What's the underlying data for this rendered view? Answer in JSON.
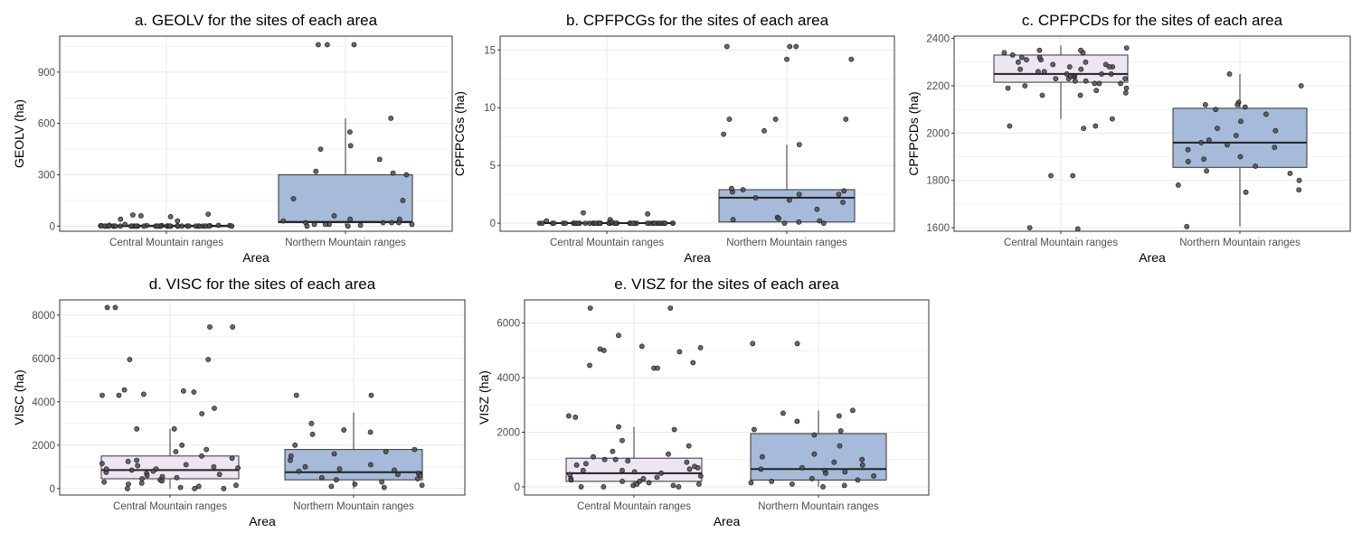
{
  "colors": {
    "central": "#ede5f1",
    "northern": "#a6bad9",
    "point": "#333333",
    "grid": "#ebebeb",
    "border": "#333333"
  },
  "chart_data": [
    {
      "type": "box",
      "title": "a. GEOLV for the sites of each area",
      "xlabel": "Area",
      "ylabel": "GEOLV (ha)",
      "categories": [
        "Central Mountain ranges",
        "Northern Mountain ranges"
      ],
      "ylim": [
        -30,
        1110
      ],
      "yticks": [
        0,
        300,
        600,
        900
      ],
      "boxes": [
        {
          "q1": 0,
          "median": 0,
          "q3": 5,
          "whisker_low": 0,
          "whisker_high": 10
        },
        {
          "q1": 20,
          "median": 25,
          "q3": 300,
          "whisker_low": 0,
          "whisker_high": 630
        }
      ],
      "points": [
        [
          0,
          5,
          0,
          2,
          0,
          1,
          0,
          3,
          0,
          0,
          2,
          0,
          1,
          0,
          0,
          4,
          0,
          0,
          3,
          0,
          0,
          5,
          0,
          1,
          0,
          0,
          2,
          0,
          0,
          60,
          0,
          0,
          30,
          0,
          0,
          70,
          0,
          40,
          0,
          0,
          10,
          0,
          0,
          55,
          0,
          0,
          2,
          0,
          0,
          65
        ],
        [
          1060,
          1060,
          1060,
          470,
          160,
          30,
          40,
          20,
          60,
          10,
          0,
          550,
          300,
          20,
          10,
          40,
          630,
          450,
          310,
          320,
          20,
          10,
          390,
          150,
          0,
          5,
          10,
          20
        ]
      ]
    },
    {
      "type": "box",
      "title": "b. CPFPCGs for the sites of each area",
      "xlabel": "Area",
      "ylabel": "CPFPCGs (ha)",
      "categories": [
        "Central Mountain ranges",
        "Northern Mountain ranges"
      ],
      "ylim": [
        -0.7,
        16.2
      ],
      "yticks": [
        0,
        5,
        10,
        15
      ],
      "boxes": [
        {
          "q1": 0,
          "median": 0,
          "q3": 0.05,
          "whisker_low": 0,
          "whisker_high": 0.1
        },
        {
          "q1": 0.1,
          "median": 2.2,
          "q3": 2.9,
          "whisker_low": 0,
          "whisker_high": 6.8
        }
      ],
      "points": [
        [
          0,
          0,
          0,
          0,
          0,
          0,
          0,
          0,
          0,
          0,
          0,
          0,
          0,
          0,
          0,
          0,
          0,
          0,
          0,
          0,
          0,
          0,
          0,
          0,
          0.9,
          0,
          0,
          0,
          0,
          0,
          0,
          0,
          0,
          0,
          0,
          0.3,
          0,
          0,
          0.2,
          0,
          0.8,
          0,
          0,
          0,
          0,
          0.1,
          0,
          0,
          0,
          0
        ],
        [
          15.3,
          15.3,
          15.3,
          14.2,
          14.2,
          9,
          9,
          9,
          8,
          7.7,
          6.8,
          2.9,
          2.7,
          2.2,
          2,
          1.8,
          2.5,
          2.8,
          3,
          2.5,
          1.2,
          0.5,
          0.4,
          0.3,
          0.2,
          0,
          0,
          0.1
        ]
      ]
    },
    {
      "type": "box",
      "title": "c. CPFPCDs for the sites of each area",
      "xlabel": "Area",
      "ylabel": "CPFPCDs (ha)",
      "categories": [
        "Central Mountain ranges",
        "Northern Mountain ranges"
      ],
      "ylim": [
        1585,
        2410
      ],
      "yticks": [
        1600,
        1800,
        2000,
        2200,
        2400
      ],
      "boxes": [
        {
          "q1": 2215,
          "median": 2250,
          "q3": 2330,
          "whisker_low": 2060,
          "whisker_high": 2370
        },
        {
          "q1": 1855,
          "median": 1960,
          "q3": 2105,
          "whisker_low": 1605,
          "whisker_high": 2250
        }
      ],
      "points": [
        [
          2350,
          2340,
          2320,
          2310,
          2300,
          2290,
          2280,
          2270,
          2260,
          2250,
          2250,
          2240,
          2230,
          2220,
          2210,
          2200,
          2190,
          2180,
          2170,
          2160,
          2330,
          2320,
          2300,
          2280,
          2260,
          2240,
          2220,
          2350,
          2340,
          2310,
          2290,
          2270,
          2250,
          2230,
          2210,
          2190,
          2160,
          2060,
          2030,
          2030,
          2020,
          1820,
          1820,
          1600,
          1595,
          2360,
          2240,
          2280,
          2230,
          2210
        ],
        [
          2250,
          2200,
          2130,
          2120,
          2110,
          2100,
          2080,
          2050,
          2020,
          2010,
          1990,
          1970,
          1960,
          1950,
          1940,
          1930,
          1900,
          1880,
          1860,
          1840,
          1830,
          1800,
          1780,
          1760,
          1750,
          1605,
          2120,
          1890
        ]
      ]
    },
    {
      "type": "box",
      "title": "d. VISC for the sites of each area",
      "xlabel": "Area",
      "ylabel": "VISC (ha)",
      "categories": [
        "Central Mountain ranges",
        "Northern Mountain ranges"
      ],
      "ylim": [
        -300,
        8700
      ],
      "yticks": [
        0,
        2000,
        4000,
        6000,
        8000
      ],
      "boxes": [
        {
          "q1": 450,
          "median": 850,
          "q3": 1500,
          "whisker_low": 0,
          "whisker_high": 2750
        },
        {
          "q1": 400,
          "median": 750,
          "q3": 1800,
          "whisker_low": 0,
          "whisker_high": 3500
        }
      ],
      "points": [
        [
          8350,
          8350,
          7450,
          7450,
          5950,
          5950,
          4550,
          4500,
          4450,
          4350,
          4300,
          4300,
          3700,
          3450,
          2750,
          2750,
          1800,
          1700,
          1400,
          1300,
          1250,
          1150,
          1050,
          1000,
          950,
          900,
          850,
          800,
          750,
          700,
          650,
          600,
          550,
          500,
          450,
          400,
          350,
          300,
          250,
          200,
          150,
          100,
          50,
          0,
          0,
          0,
          2000,
          1500,
          1100,
          900
        ],
        [
          4300,
          4300,
          3000,
          2700,
          2600,
          2500,
          2000,
          1800,
          1700,
          1600,
          1500,
          1300,
          1100,
          1000,
          900,
          850,
          800,
          700,
          650,
          600,
          500,
          450,
          400,
          300,
          200,
          150,
          100,
          50
        ]
      ]
    },
    {
      "type": "box",
      "title": "e. VISZ for the sites of each area",
      "xlabel": "Area",
      "ylabel": "VISZ (ha)",
      "categories": [
        "Central Mountain ranges",
        "Northern Mountain ranges"
      ],
      "ylim": [
        -300,
        6850
      ],
      "yticks": [
        0,
        2000,
        4000,
        6000
      ],
      "boxes": [
        {
          "q1": 200,
          "median": 500,
          "q3": 1050,
          "whisker_low": 0,
          "whisker_high": 2200
        },
        {
          "q1": 250,
          "median": 650,
          "q3": 1950,
          "whisker_low": 0,
          "whisker_high": 2800
        }
      ],
      "points": [
        [
          6550,
          6550,
          5550,
          5150,
          5100,
          5050,
          5000,
          4950,
          4550,
          4450,
          4350,
          4350,
          2600,
          2550,
          2200,
          2100,
          1700,
          1500,
          1200,
          1100,
          1000,
          950,
          900,
          850,
          800,
          750,
          700,
          650,
          600,
          550,
          500,
          450,
          400,
          350,
          300,
          250,
          200,
          150,
          100,
          50,
          0,
          0,
          1300,
          1000,
          600,
          300,
          200,
          100,
          50,
          0
        ],
        [
          5250,
          5250,
          2800,
          2700,
          2600,
          2400,
          2100,
          2050,
          1900,
          1500,
          1200,
          1100,
          1000,
          900,
          800,
          700,
          650,
          600,
          550,
          500,
          400,
          300,
          250,
          200,
          150,
          100,
          50,
          0
        ]
      ]
    }
  ]
}
